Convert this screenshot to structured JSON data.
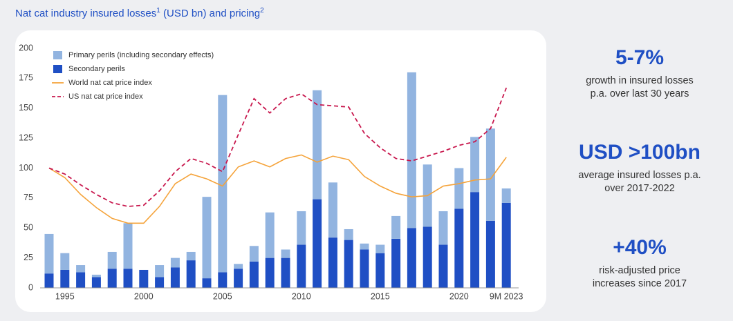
{
  "chart_data": {
    "type": "bar",
    "title": "Nat cat industry insured losses",
    "title_sup": "1",
    "title_suffix": " (USD bn) and pricing",
    "title_suffix_sup": "2",
    "categories": [
      null,
      "1995",
      null,
      null,
      null,
      null,
      "2000",
      null,
      null,
      null,
      null,
      "2005",
      null,
      null,
      null,
      null,
      "2010",
      null,
      null,
      null,
      null,
      "2015",
      null,
      null,
      null,
      null,
      "2020",
      null,
      null,
      "9M 2023"
    ],
    "series": [
      {
        "name": "Primary perils (including secondary effects)",
        "kind": "bar",
        "color": "#92b4e0",
        "values": [
          33,
          14,
          6,
          2,
          14,
          38,
          0,
          10,
          8,
          7,
          68,
          148,
          4,
          13,
          38,
          7,
          28,
          91,
          46,
          9,
          5,
          7,
          19,
          130,
          52,
          28,
          34,
          46,
          77,
          12
        ]
      },
      {
        "name": "Secondary perils",
        "kind": "bar",
        "color": "#1f4fc4",
        "values": [
          12,
          15,
          13,
          9,
          16,
          16,
          15,
          9,
          17,
          23,
          8,
          13,
          16,
          22,
          25,
          25,
          36,
          74,
          42,
          40,
          32,
          29,
          41,
          50,
          51,
          36,
          66,
          80,
          56,
          71
        ]
      },
      {
        "name": "World nat cat price index",
        "kind": "line",
        "color": "#f5a33a",
        "dashed": false,
        "values": [
          100,
          92,
          78,
          67,
          58,
          54,
          54,
          68,
          87,
          95,
          91,
          85,
          101,
          106,
          101,
          108,
          111,
          105,
          110,
          107,
          93,
          85,
          79,
          76,
          77,
          85,
          87,
          90,
          91,
          109
        ]
      },
      {
        "name": "US nat cat price index",
        "kind": "line",
        "color": "#c8174d",
        "dashed": true,
        "values": [
          100,
          95,
          86,
          78,
          71,
          68,
          69,
          81,
          97,
          108,
          104,
          97,
          128,
          158,
          146,
          158,
          162,
          153,
          152,
          151,
          129,
          117,
          108,
          106,
          110,
          114,
          119,
          122,
          133,
          167
        ]
      }
    ],
    "ylim": [
      0,
      200
    ],
    "yticks": [
      0,
      25,
      50,
      75,
      100,
      125,
      150,
      175,
      200
    ],
    "grid": false,
    "legend": "top-left"
  },
  "stats": [
    {
      "value": "5-7%",
      "lines": [
        "growth in insured losses",
        "p.a. over last 30 years"
      ]
    },
    {
      "value": "USD >100bn",
      "lines": [
        "average insured losses p.a.",
        "over 2017-2022"
      ]
    },
    {
      "value": "+40%",
      "lines": [
        "risk-adjusted price",
        "increases since 2017"
      ]
    }
  ]
}
